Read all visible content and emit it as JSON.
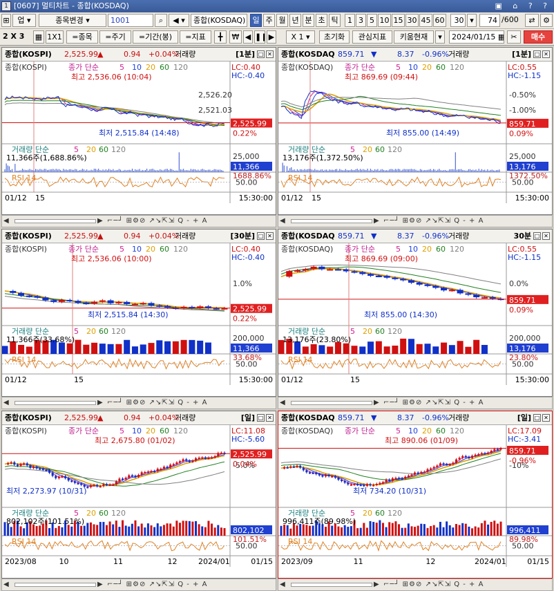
{
  "window": {
    "title": "[0607] 멀티차트 - 종합(KOSDAQ)",
    "icon": "1"
  },
  "toolbar1": {
    "code_type": "업",
    "code_change": "종목변경",
    "code": "1001",
    "search_field": "종합(KOSDAQ)",
    "periods": [
      "일",
      "주",
      "월",
      "년",
      "분",
      "초",
      "틱"
    ],
    "counts": [
      "1",
      "3",
      "5",
      "10",
      "15",
      "30",
      "45",
      "60"
    ],
    "n": "30",
    "page": "74",
    "page_total": "/600"
  },
  "toolbar2": {
    "grid": "2 X 3",
    "one_by_one": "1X1",
    "btn_item": "=종목",
    "btn_cycle": "=주기",
    "btn_period": "=기간(봉)",
    "btn_indicator": "=지표",
    "multiplier": "X 1",
    "reset": "초기화",
    "interest": "관심지표",
    "kiwoom": "키움현재",
    "date": "2024/01/15",
    "buy": "매수"
  },
  "panels": [
    {
      "name": "종합(KOSPI)",
      "price": "2,525.99",
      "dir": "up",
      "change": "0.94",
      "pct": "+0.04%",
      "vol": "거래량",
      "interval": "[1분]",
      "main_label": "종합(KOSPI)",
      "ma_label": "종가 단순",
      "mas": [
        "5",
        "10",
        "20",
        "60",
        "120"
      ],
      "high_label": "최고 2,536.06 (10:04)",
      "low_label": "최저 2,515.84 (14:48)",
      "lc": "LC:0.40",
      "hc": "HC:-0.40",
      "y_labels": [
        "2,526.20",
        "2,521.03"
      ],
      "price_tag": "2,525.99",
      "pct_tag": "0.22%",
      "vol_label": "거래량 단순",
      "vol_mas": [
        "5",
        "20",
        "60",
        "120"
      ],
      "vol_val": "11,366주(1,688.86%)",
      "vol_axis": "25,000",
      "vol_tag": "11,366",
      "vol_pct": "1688.86%",
      "rsi_label": "RSI 14",
      "rsi_axis": "50.00",
      "x_labels": [
        "01/12",
        "15"
      ],
      "x_right": "15:30:00"
    },
    {
      "name": "종합(KOSDAQ",
      "price": "859.71",
      "dir": "down",
      "change": "8.37",
      "pct": "-0.96%",
      "vol": "거래량",
      "interval": "[1분]",
      "main_label": "종합(KOSDAQ)",
      "ma_label": "종가 단순",
      "mas": [
        "5",
        "10",
        "20",
        "60",
        "120"
      ],
      "high_label": "최고 869.69 (09:44)",
      "low_label": "최저 855.00 (14:49)",
      "lc": "LC:0.55",
      "hc": "HC:-1.15",
      "y_labels": [
        "-0.50%",
        "-1.00%"
      ],
      "price_tag": "859.71",
      "pct_tag": "0.09%",
      "vol_label": "거래량 단순",
      "vol_mas": [
        "5",
        "20",
        "60",
        "120"
      ],
      "vol_val": "13,176주(1,372.50%)",
      "vol_axis": "25,000",
      "vol_tag": "13,176",
      "vol_pct": "1372.50%",
      "rsi_label": "RSI 14",
      "rsi_axis": "50.00",
      "x_labels": [
        "01/12",
        "15"
      ],
      "x_right": "15:30:00"
    },
    {
      "name": "종합(KOSPI)",
      "price": "2,525.99",
      "dir": "up",
      "change": "0.94",
      "pct": "+0.04%",
      "vol": "거래량",
      "interval": "[30분]",
      "main_label": "종합(KOSPI)",
      "ma_label": "종가 단순",
      "mas": [
        "5",
        "10",
        "20",
        "60",
        "120"
      ],
      "high_label": "최고 2,536.06 (10:00)",
      "low_label": "최저 2,515.84 (14:30)",
      "lc": "LC:0.40",
      "hc": "HC:-0.40",
      "y_labels": [
        "1.0%"
      ],
      "price_tag": "2,525.99",
      "pct_tag": "0.22%",
      "vol_label": "거래량 단순",
      "vol_mas": [
        "5",
        "20",
        "60",
        "120"
      ],
      "vol_val": "11,366주(33.68%)",
      "vol_axis": "200,000",
      "vol_tag": "11,366",
      "vol_pct": "33.68%",
      "rsi_label": "RSI 14",
      "rsi_axis": "50.00",
      "x_labels": [
        "01/12",
        "15"
      ],
      "x_right": "15:30:00"
    },
    {
      "name": "종합(KOSDAQ",
      "price": "859.71",
      "dir": "down",
      "change": "8.37",
      "pct": "-0.96%",
      "vol": "거래량",
      "interval": "30분",
      "main_label": "종합(KOSDAQ)",
      "ma_label": "종가 단순",
      "mas": [
        "5",
        "10",
        "20",
        "60",
        "120"
      ],
      "high_label": "최고 869.69 (09:00)",
      "low_label": "최저 855.00 (14:30)",
      "lc": "LC:0.55",
      "hc": "HC:-1.15",
      "y_labels": [
        "0.0%"
      ],
      "price_tag": "859.71",
      "pct_tag": "0.09%",
      "vol_label": "거래량 단순",
      "vol_mas": [
        "5",
        "20",
        "60",
        "120"
      ],
      "vol_val": "13,176주(23.80%)",
      "vol_axis": "200,000",
      "vol_tag": "13,176",
      "vol_pct": "23.80%",
      "rsi_label": "RSI 14",
      "rsi_axis": "50.00",
      "x_labels": [
        "01/12",
        "15"
      ],
      "x_right": "15:30:00"
    },
    {
      "name": "종합(KOSPI)",
      "price": "2,525.99",
      "dir": "up",
      "change": "0.94",
      "pct": "+0.04%",
      "vol": "거래량",
      "interval": "[일]",
      "main_label": "종합(KOSPI)",
      "ma_label": "종가 단순",
      "mas": [
        "5",
        "10",
        "20",
        "60",
        "120"
      ],
      "high_label": "최고 2,675.80 (01/02)",
      "low_label": "최저 2,273.97 (10/31)",
      "lc": "LC:11.08",
      "hc": "HC:-5.60",
      "y_labels": [
        "-5.0%"
      ],
      "price_tag": "2,525.99",
      "pct_tag": "0.04%",
      "vol_label": "거래량 단순",
      "vol_mas": [
        "5",
        "20",
        "60",
        "120"
      ],
      "vol_val": "802,102주(101.51%)",
      "vol_axis": "",
      "vol_tag": "802,102",
      "vol_pct": "101.51%",
      "rsi_label": "RSI 14",
      "rsi_axis": "50.00",
      "x_labels": [
        "2023/08",
        "10",
        "11",
        "12",
        "2024/01"
      ],
      "x_right": "01/15"
    },
    {
      "name": "종합(KOSDAQ",
      "price": "859.71",
      "dir": "down",
      "change": "8.37",
      "pct": "-0.96%",
      "vol": "거래량",
      "interval": "[일]",
      "main_label": "종합(KOSDAQ)",
      "ma_label": "종가 단순",
      "mas": [
        "5",
        "10",
        "20",
        "60",
        "120"
      ],
      "high_label": "최고 890.06 (01/09)",
      "low_label": "최저 734.20 (10/31)",
      "lc": "LC:17.09",
      "hc": "HC:-3.41",
      "y_labels": [
        "-10%"
      ],
      "price_tag": "859.71",
      "pct_tag": "-0.96%",
      "vol_label": "거래량 단순",
      "vol_mas": [
        "5",
        "20",
        "60",
        "120"
      ],
      "vol_val": "996,411주(89.98%)",
      "vol_axis": "",
      "vol_tag": "996,411",
      "vol_pct": "89.98%",
      "rsi_label": "RSI 14",
      "rsi_axis": "50.00",
      "x_labels": [
        "2023/09",
        "11",
        "12",
        "2024/01"
      ],
      "x_right": "01/15"
    }
  ],
  "colors": {
    "up": "#d01010",
    "down": "#1030c8",
    "ma5": "#d02090",
    "ma10": "#2040e0",
    "ma20": "#e0a000",
    "ma60": "#208020",
    "ma120": "#808080",
    "rsi": "#e08020"
  }
}
